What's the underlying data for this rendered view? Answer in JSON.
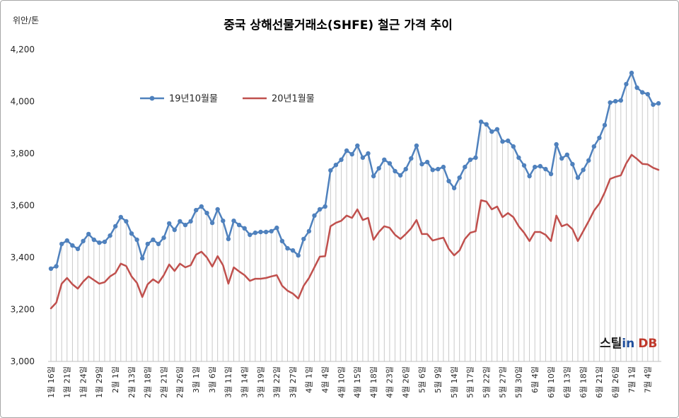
{
  "chart_data": {
    "type": "line",
    "title": "중국 상해선물거래소(SHFE) 철근 가격 추이",
    "xlabel": "",
    "ylabel": "위안/톤",
    "ylim": [
      3000,
      4200
    ],
    "y_tick_labels": [
      "3,000",
      "3,200",
      "3,400",
      "3,600",
      "3,800",
      "4,000",
      "4,200"
    ],
    "x_tick_labels": [
      "1월 16일",
      "1월 21일",
      "1월 24일",
      "1월 29일",
      "2월 1일",
      "2월 13일",
      "2월 18일",
      "2월 21일",
      "2월 26일",
      "3월 1일",
      "3월 6일",
      "3월 11일",
      "3월 14일",
      "3월 19일",
      "3월 22일",
      "3월 27일",
      "4월 1일",
      "4월 4일",
      "4월 10일",
      "4월 15일",
      "4월 18일",
      "4월 23일",
      "4월 26일",
      "5월 6일",
      "5월 9일",
      "5월 14일",
      "5월 17일",
      "5월 22일",
      "5월 27일",
      "5월 30일",
      "6월 4일",
      "6월 10일",
      "6월 13일",
      "6월 18일",
      "6월 21일",
      "6월 26일",
      "7월 1일",
      "7월 4일"
    ],
    "legend": "top-left",
    "grid": false,
    "drop_lines": true,
    "series": [
      {
        "name": "19년10월물",
        "color": "#4F81BD",
        "marker": "circle",
        "values": [
          3357,
          3366,
          3452,
          3465,
          3446,
          3433,
          3463,
          3490,
          3468,
          3457,
          3460,
          3484,
          3520,
          3555,
          3539,
          3492,
          3468,
          3397,
          3452,
          3468,
          3452,
          3476,
          3531,
          3506,
          3539,
          3525,
          3539,
          3582,
          3596,
          3571,
          3533,
          3585,
          3541,
          3471,
          3541,
          3525,
          3512,
          3487,
          3495,
          3498,
          3498,
          3501,
          3514,
          3463,
          3435,
          3427,
          3408,
          3471,
          3501,
          3561,
          3585,
          3596,
          3735,
          3756,
          3776,
          3811,
          3797,
          3830,
          3784,
          3800,
          3713,
          3743,
          3776,
          3762,
          3732,
          3716,
          3740,
          3781,
          3830,
          3759,
          3767,
          3737,
          3740,
          3748,
          3694,
          3667,
          3707,
          3748,
          3776,
          3784,
          3922,
          3912,
          3884,
          3893,
          3846,
          3849,
          3827,
          3784,
          3754,
          3713,
          3748,
          3751,
          3740,
          3721,
          3835,
          3781,
          3795,
          3759,
          3707,
          3737,
          3773,
          3827,
          3860,
          3909,
          3996,
          4001,
          4004,
          4067,
          4110,
          4053,
          4035,
          4028,
          3988,
          3993
        ]
      },
      {
        "name": "20년1월물",
        "color": "#C0504D",
        "marker": "none",
        "values": [
          3204,
          3226,
          3299,
          3321,
          3297,
          3280,
          3307,
          3327,
          3313,
          3299,
          3305,
          3327,
          3340,
          3376,
          3367,
          3327,
          3302,
          3248,
          3297,
          3316,
          3302,
          3332,
          3373,
          3348,
          3376,
          3362,
          3370,
          3411,
          3422,
          3400,
          3365,
          3405,
          3370,
          3299,
          3362,
          3346,
          3332,
          3310,
          3318,
          3318,
          3321,
          3327,
          3332,
          3291,
          3272,
          3261,
          3242,
          3291,
          3321,
          3362,
          3403,
          3405,
          3520,
          3533,
          3541,
          3561,
          3552,
          3585,
          3544,
          3552,
          3468,
          3498,
          3520,
          3514,
          3487,
          3471,
          3490,
          3512,
          3544,
          3490,
          3490,
          3465,
          3471,
          3476,
          3433,
          3408,
          3427,
          3471,
          3495,
          3501,
          3620,
          3615,
          3585,
          3596,
          3555,
          3571,
          3555,
          3520,
          3495,
          3463,
          3498,
          3498,
          3487,
          3463,
          3561,
          3520,
          3528,
          3509,
          3463,
          3501,
          3539,
          3580,
          3607,
          3650,
          3702,
          3710,
          3716,
          3762,
          3795,
          3779,
          3760,
          3758,
          3745,
          3737
        ]
      }
    ]
  },
  "logo": {
    "text_1": "스틸",
    "text_2": "in",
    "text_3": "DB",
    "colors": [
      "#1a1a1a",
      "#1f4e9c",
      "#c0392b"
    ]
  }
}
